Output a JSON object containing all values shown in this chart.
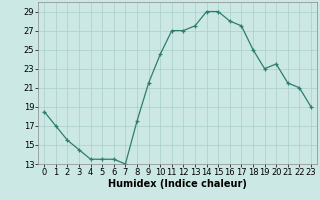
{
  "x": [
    0,
    1,
    2,
    3,
    4,
    5,
    6,
    7,
    8,
    9,
    10,
    11,
    12,
    13,
    14,
    15,
    16,
    17,
    18,
    19,
    20,
    21,
    22,
    23
  ],
  "y": [
    18.5,
    17.0,
    15.5,
    14.5,
    13.5,
    13.5,
    13.5,
    13.0,
    17.5,
    21.5,
    24.5,
    27.0,
    27.0,
    27.5,
    29.0,
    29.0,
    28.0,
    27.5,
    25.0,
    23.0,
    23.5,
    21.5,
    21.0,
    19.0
  ],
  "xlabel": "Humidex (Indice chaleur)",
  "xlim": [
    -0.5,
    23.5
  ],
  "ylim": [
    13,
    30
  ],
  "yticks": [
    13,
    15,
    17,
    19,
    21,
    23,
    25,
    27,
    29
  ],
  "xticks": [
    0,
    1,
    2,
    3,
    4,
    5,
    6,
    7,
    8,
    9,
    10,
    11,
    12,
    13,
    14,
    15,
    16,
    17,
    18,
    19,
    20,
    21,
    22,
    23
  ],
  "line_color": "#2e7d6e",
  "marker": "+",
  "bg_color": "#cce8e4",
  "grid_color": "#aacfcb",
  "axis_label_fontsize": 7,
  "tick_fontsize": 6
}
